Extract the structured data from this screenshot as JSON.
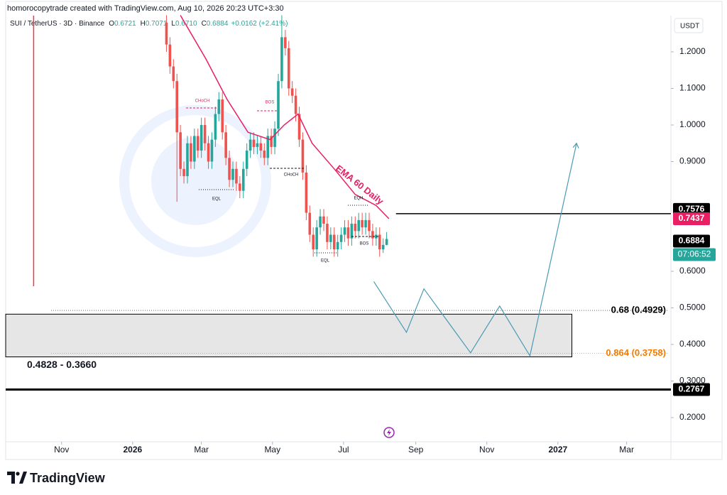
{
  "header": {
    "attribution": "homorocopytrade created with TradingView.com, Aug 10, 2026 20:23 UTC+3:30",
    "symbol": "SUI / TetherUS · 3D · Binance",
    "ohlc": [
      {
        "letter": "O",
        "value": "0.6721"
      },
      {
        "letter": "H",
        "value": "0.7071"
      },
      {
        "letter": "L",
        "value": "0.6710"
      },
      {
        "letter": "C",
        "value": "0.6884"
      }
    ],
    "change": "+0.0162 (+2.41%)"
  },
  "chart_data": {
    "type": "candlestick",
    "currency": "USDT",
    "color_up": "#26a69a",
    "color_down": "#ef5350",
    "x": [
      90,
      93,
      96,
      99,
      102,
      105,
      108,
      111,
      114,
      117,
      120,
      123,
      126,
      129,
      132,
      135,
      138,
      141,
      144,
      147,
      150,
      153,
      156,
      159,
      162,
      165,
      168,
      171,
      174,
      177,
      180,
      183,
      186,
      189,
      192,
      195,
      198,
      201,
      204,
      207,
      210,
      213,
      216,
      219,
      222,
      225,
      228,
      231,
      234,
      237,
      240,
      243,
      246,
      249,
      252,
      255,
      258,
      261,
      264,
      267,
      270,
      273,
      276,
      279
    ],
    "open": [
      1.28,
      1.22,
      1.16,
      1.12,
      0.98,
      0.88,
      0.86,
      0.95,
      0.9,
      0.97,
      0.93,
      1.0,
      0.95,
      0.9,
      0.96,
      1.03,
      1.07,
      0.98,
      0.91,
      0.85,
      0.88,
      0.84,
      0.82,
      0.88,
      0.93,
      0.96,
      0.94,
      0.95,
      0.93,
      0.91,
      0.97,
      0.94,
      0.99,
      1.12,
      1.24,
      1.21,
      1.1,
      1.08,
      1.03,
      0.96,
      0.87,
      0.76,
      0.7,
      0.66,
      0.72,
      0.75,
      0.73,
      0.68,
      0.7,
      0.66,
      0.68,
      0.7,
      0.72,
      0.69,
      0.73,
      0.71,
      0.74,
      0.72,
      0.74,
      0.71,
      0.69,
      0.7,
      0.66,
      0.6721
    ],
    "high": [
      1.3,
      1.24,
      1.18,
      1.14,
      1.0,
      0.9,
      0.97,
      0.97,
      0.99,
      0.99,
      1.02,
      1.02,
      0.97,
      0.98,
      1.05,
      1.09,
      1.09,
      1.0,
      0.93,
      0.9,
      0.9,
      0.86,
      0.9,
      0.95,
      0.98,
      0.98,
      0.97,
      0.97,
      0.95,
      0.99,
      0.99,
      1.01,
      1.14,
      1.3,
      1.26,
      1.23,
      1.12,
      1.1,
      1.05,
      0.98,
      0.89,
      0.78,
      0.72,
      0.74,
      0.77,
      0.77,
      0.75,
      0.72,
      0.72,
      0.7,
      0.72,
      0.74,
      0.74,
      0.75,
      0.75,
      0.76,
      0.76,
      0.76,
      0.76,
      0.73,
      0.72,
      0.72,
      0.69,
      0.7071
    ],
    "low": [
      1.2,
      1.14,
      1.1,
      0.79,
      0.86,
      0.84,
      0.84,
      0.88,
      0.88,
      0.91,
      0.91,
      0.93,
      0.88,
      0.88,
      0.94,
      1.01,
      0.96,
      0.89,
      0.83,
      0.83,
      0.82,
      0.8,
      0.8,
      0.86,
      0.91,
      0.92,
      0.92,
      0.91,
      0.89,
      0.89,
      0.92,
      0.92,
      0.97,
      1.1,
      1.19,
      1.08,
      1.06,
      1.01,
      0.94,
      0.85,
      0.74,
      0.68,
      0.64,
      0.64,
      0.7,
      0.71,
      0.66,
      0.66,
      0.64,
      0.64,
      0.66,
      0.68,
      0.67,
      0.67,
      0.69,
      0.69,
      0.7,
      0.7,
      0.69,
      0.67,
      0.67,
      0.64,
      0.65,
      0.671
    ],
    "close": [
      1.22,
      1.16,
      1.12,
      0.98,
      0.88,
      0.86,
      0.95,
      0.9,
      0.97,
      0.93,
      1.0,
      0.95,
      0.9,
      0.96,
      1.03,
      1.07,
      0.98,
      0.91,
      0.85,
      0.88,
      0.84,
      0.82,
      0.88,
      0.93,
      0.96,
      0.94,
      0.95,
      0.93,
      0.91,
      0.97,
      0.94,
      0.99,
      1.12,
      1.24,
      1.21,
      1.1,
      1.08,
      1.03,
      0.96,
      0.87,
      0.76,
      0.7,
      0.66,
      0.72,
      0.75,
      0.73,
      0.68,
      0.7,
      0.66,
      0.68,
      0.7,
      0.72,
      0.69,
      0.73,
      0.71,
      0.74,
      0.72,
      0.74,
      0.71,
      0.69,
      0.7,
      0.66,
      0.6721,
      0.6884
    ],
    "ema": {
      "name": "EMA 60 Daily",
      "color": "#e91e63",
      "x": [
        102,
        124,
        142,
        160,
        179,
        191,
        203,
        215,
        234,
        252,
        270,
        281
      ],
      "values": [
        1.3,
        1.18,
        1.07,
        0.98,
        0.96,
        1.0,
        1.03,
        0.95,
        0.88,
        0.81,
        0.78,
        0.7437
      ]
    },
    "projection": {
      "color": "#4a9bb5",
      "x": [
        268,
        296,
        311,
        351,
        376,
        402,
        442
      ],
      "values": [
        0.572,
        0.433,
        0.552,
        0.377,
        0.505,
        0.369,
        0.95
      ]
    },
    "levels": [
      {
        "value": 0.7576,
        "start": 287,
        "color": "#000000",
        "width": 1.5
      },
      {
        "value": 0.2767,
        "start": -48,
        "color": "#000000",
        "width": 3
      }
    ],
    "zone": {
      "top": 0.4828,
      "bottom": 0.366,
      "end": 438,
      "label": "0.4828 - 0.3660",
      "color": "#e6e6e6"
    },
    "fib": [
      {
        "value": 0.4929,
        "label": "0.68 (0.4929)",
        "color": "#000000"
      },
      {
        "value": 0.3758,
        "label": "0.864 (0.3758)",
        "color": "#f57c00"
      }
    ],
    "vline": {
      "x": -24,
      "color": "#f23645"
    },
    "countdown": "07:06:52",
    "annotations": [
      {
        "text": "CHoCH",
        "color": "#e91e63"
      },
      {
        "text": "BOS",
        "color": "#e91e63"
      },
      {
        "text": "EQL",
        "color": "#131722"
      },
      {
        "text": "CHoCH",
        "color": "#131722"
      },
      {
        "text": "EQH",
        "color": "#131722"
      },
      {
        "text": "BOS",
        "color": "#131722"
      },
      {
        "text": "EQL",
        "color": "#131722"
      }
    ],
    "xlim": [
      -48,
      523
    ],
    "xticks": [
      {
        "value": 0,
        "label": "Nov"
      },
      {
        "value": 61,
        "label": "2026"
      },
      {
        "value": 120,
        "label": "Mar"
      },
      {
        "value": 181,
        "label": "May"
      },
      {
        "value": 242,
        "label": "Jul"
      },
      {
        "value": 304,
        "label": "Sep"
      },
      {
        "value": 365,
        "label": "Nov"
      },
      {
        "value": 426,
        "label": "2027"
      },
      {
        "value": 485,
        "label": "Mar"
      }
    ],
    "ylim": [
      0.134,
      1.299
    ],
    "yticks": [
      {
        "value": 1.2,
        "label": "1.2000"
      },
      {
        "value": 1.1,
        "label": "1.1000"
      },
      {
        "value": 1.0,
        "label": "1.0000"
      },
      {
        "value": 0.9,
        "label": "0.9000"
      },
      {
        "value": 0.6,
        "label": "0.6000"
      },
      {
        "value": 0.5,
        "label": "0.5000"
      },
      {
        "value": 0.4,
        "label": "0.4000"
      },
      {
        "value": 0.3,
        "label": "0.3000"
      },
      {
        "value": 0.2,
        "label": "0.2000"
      }
    ]
  },
  "footer": {
    "brand": "TradingView"
  }
}
